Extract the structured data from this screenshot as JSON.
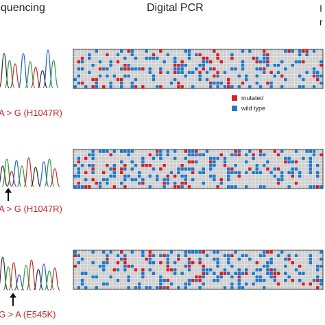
{
  "headers": {
    "sequencing": "equencing",
    "digital_pcr": "Digital PCR",
    "right_cut_top": "I",
    "right_cut_bottom": "r"
  },
  "panels": [
    {
      "mutation": "A > G (H1047R)",
      "has_arrow": false
    },
    {
      "mutation": "A > G (H1047R)",
      "has_arrow": true
    },
    {
      "mutation": "G > A (E545K)",
      "has_arrow": true
    }
  ],
  "legend": [
    {
      "label": "mutated",
      "color": "#d0202a"
    },
    {
      "label": "wild type",
      "color": "#1f78c8"
    }
  ],
  "colors": {
    "grid_bg": "#cfcfcf",
    "mutated": "#d0202a",
    "wild_type": "#1f78c8",
    "border": "#333333"
  }
}
